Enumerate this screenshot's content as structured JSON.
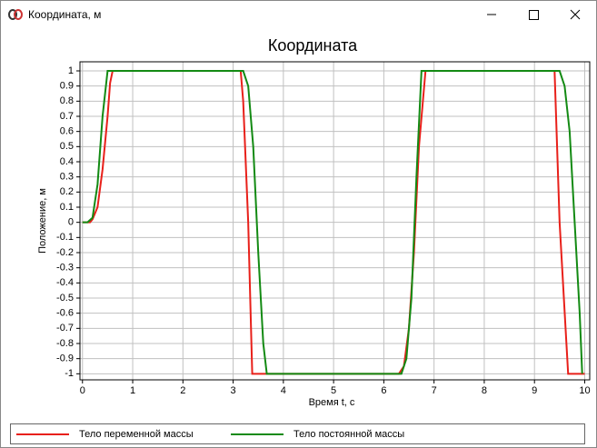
{
  "window": {
    "title": "Координата, м"
  },
  "chart_data": {
    "type": "line",
    "title": "Координата",
    "x_label": "Время t, с",
    "y_label": "Положение, м",
    "xlim": [
      -0.05,
      10.1
    ],
    "ylim": [
      -1.04,
      1.06
    ],
    "xticks": [
      0,
      1,
      2,
      3,
      4,
      5,
      6,
      7,
      8,
      9,
      10
    ],
    "yticks": [
      1,
      0.9,
      0.8,
      0.7,
      0.6,
      0.5,
      0.4,
      0.3,
      0.2,
      0.1,
      0,
      -0.1,
      -0.2,
      -0.3,
      -0.4,
      -0.5,
      -0.6,
      -0.7,
      -0.8,
      -0.9,
      -1
    ],
    "grid": true,
    "series": [
      {
        "name": "Тело переменной массы",
        "color": "#e8201a",
        "x": [
          0,
          0.15,
          0.2,
          0.3,
          0.4,
          0.5,
          0.55,
          0.6,
          3.15,
          3.2,
          3.3,
          3.38,
          6.3,
          6.4,
          6.5,
          6.6,
          6.7,
          6.83,
          9.4,
          9.5,
          9.67,
          10
        ],
        "values": [
          0,
          0,
          0.02,
          0.1,
          0.35,
          0.7,
          0.92,
          1,
          1,
          0.8,
          0,
          -1,
          -1,
          -0.95,
          -0.7,
          -0.2,
          0.5,
          1,
          1,
          0,
          -1,
          -1
        ]
      },
      {
        "name": "Тело постоянной массы",
        "color": "#138a13",
        "x": [
          0,
          0.1,
          0.2,
          0.3,
          0.4,
          0.5,
          3.2,
          3.3,
          3.4,
          3.5,
          3.6,
          3.67,
          6.35,
          6.45,
          6.55,
          6.65,
          6.75,
          9.5,
          9.6,
          9.7,
          9.8,
          9.9,
          9.95
        ],
        "values": [
          0,
          0,
          0.03,
          0.25,
          0.7,
          1,
          1,
          0.9,
          0.5,
          -0.2,
          -0.8,
          -1,
          -1,
          -0.9,
          -0.5,
          0.3,
          1,
          1,
          0.9,
          0.6,
          0,
          -0.6,
          -1
        ]
      }
    ]
  }
}
